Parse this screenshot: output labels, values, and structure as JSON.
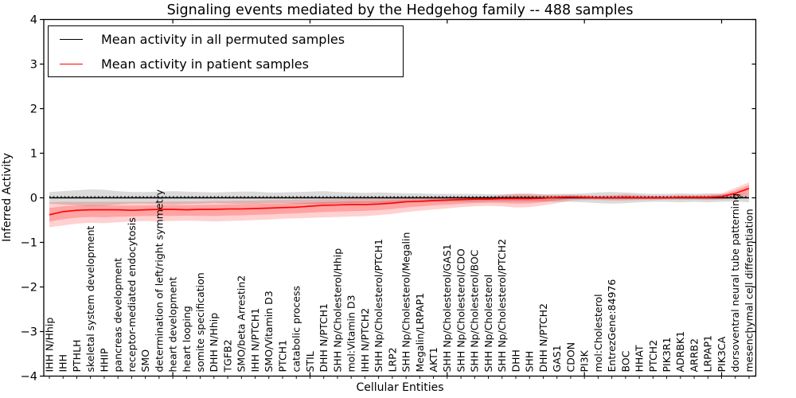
{
  "chart_data": {
    "type": "line",
    "title": "Signaling events mediated by the Hedgehog family -- 488 samples",
    "xlabel": "Cellular Entities",
    "ylabel": "Inferred Activity",
    "ylim": [
      -4,
      4
    ],
    "ytick_labels": [
      "4",
      "3",
      "2",
      "1",
      "0",
      "−1",
      "−2",
      "−3",
      "−4"
    ],
    "ytick_values": [
      4,
      3,
      2,
      1,
      0,
      -1,
      -2,
      -3,
      -4
    ],
    "grid": false,
    "legend_position": "upper left",
    "categories": [
      "IHH N/Hhip",
      "IHH",
      "PTHLH",
      "skeletal system development",
      "HHIP",
      "pancreas development",
      "receptor-mediated endocytosis",
      "SMO",
      "determination of left/right symmetry",
      "heart development",
      "heart looping",
      "somite specification",
      "DHH N/Hhip",
      "TGFB2",
      "SMO/beta Arrestin2",
      "IHH N/PTCH1",
      "SMO/Vitamin D3",
      "PTCH1",
      "catabolic process",
      "STIL",
      "DHH N/PTCH1",
      "SHH Np/Cholesterol/Hhip",
      "mol:Vitamin D3",
      "IHH N/PTCH2",
      "SHH Np/Cholesterol/PTCH1",
      "LRP2",
      "SHH Np/Cholesterol/Megalin",
      "Megalin/LRPAP1",
      "AKT1",
      "SHH Np/Cholesterol/GAS1",
      "SHH Np/Cholesterol/CDO",
      "SHH Np/Cholesterol/BOC",
      "SHH Np/Cholesterol",
      "SHH Np/Cholesterol/PTCH2",
      "DHH",
      "SHH",
      "DHH N/PTCH2",
      "GAS1",
      "CDON",
      "PI3K",
      "mol:Cholesterol",
      "EntrezGene:84976",
      "BOC",
      "HHAT",
      "PTCH2",
      "PIK3R1",
      "ADRBK1",
      "ARRB2",
      "LRPAP1",
      "PIK3CA",
      "dorsoventral neural tube patterning",
      "mesenchymal cell differentiation"
    ],
    "series": [
      {
        "name": "Mean activity in all permuted samples",
        "color": "#000000",
        "values": [
          0,
          0,
          0,
          0,
          0,
          0,
          0,
          0,
          0,
          0,
          0,
          0,
          0,
          0,
          0,
          0,
          0,
          0,
          0,
          0,
          0,
          0,
          0,
          0,
          0,
          0,
          0,
          0,
          0,
          0,
          0,
          0,
          0,
          0,
          0,
          0,
          0,
          0,
          0,
          0,
          0,
          0,
          0,
          0,
          0,
          0,
          0,
          0,
          0,
          0,
          0,
          0
        ],
        "band_upper": [
          0.13,
          0.15,
          0.17,
          0.19,
          0.18,
          0.15,
          0.13,
          0.13,
          0.14,
          0.15,
          0.14,
          0.13,
          0.12,
          0.13,
          0.14,
          0.14,
          0.12,
          0.12,
          0.13,
          0.14,
          0.15,
          0.13,
          0.12,
          0.11,
          0.12,
          0.11,
          0.1,
          0.1,
          0.09,
          0.09,
          0.09,
          0.09,
          0.08,
          0.08,
          0.08,
          0.08,
          0.08,
          0.09,
          0.09,
          0.1,
          0.12,
          0.13,
          0.12,
          0.1,
          0.09,
          0.09,
          0.1,
          0.09,
          0.1,
          0.09,
          0.08,
          0.1
        ],
        "band_lower": [
          -0.13,
          -0.15,
          -0.17,
          -0.19,
          -0.18,
          -0.15,
          -0.13,
          -0.13,
          -0.14,
          -0.15,
          -0.14,
          -0.13,
          -0.12,
          -0.13,
          -0.14,
          -0.14,
          -0.12,
          -0.12,
          -0.13,
          -0.14,
          -0.15,
          -0.13,
          -0.12,
          -0.11,
          -0.12,
          -0.11,
          -0.1,
          -0.1,
          -0.09,
          -0.09,
          -0.09,
          -0.09,
          -0.08,
          -0.08,
          -0.08,
          -0.08,
          -0.08,
          -0.09,
          -0.09,
          -0.1,
          -0.12,
          -0.13,
          -0.12,
          -0.1,
          -0.09,
          -0.09,
          -0.1,
          -0.09,
          -0.1,
          -0.09,
          -0.08,
          -0.1
        ]
      },
      {
        "name": "Mean activity in patient samples",
        "color": "#ff0000",
        "values": [
          -0.38,
          -0.31,
          -0.28,
          -0.27,
          -0.27,
          -0.27,
          -0.28,
          -0.27,
          -0.26,
          -0.26,
          -0.27,
          -0.26,
          -0.26,
          -0.25,
          -0.25,
          -0.24,
          -0.23,
          -0.22,
          -0.21,
          -0.19,
          -0.17,
          -0.16,
          -0.15,
          -0.15,
          -0.14,
          -0.12,
          -0.09,
          -0.08,
          -0.06,
          -0.05,
          -0.04,
          -0.03,
          -0.03,
          -0.02,
          -0.02,
          -0.02,
          -0.01,
          0.01,
          0.02,
          0.01,
          0.0,
          0.0,
          0.01,
          0.0,
          0.0,
          0.0,
          0.01,
          0.01,
          0.01,
          0.03,
          0.1,
          0.21
        ],
        "band_upper": [
          -0.1,
          -0.09,
          -0.09,
          -0.09,
          -0.09,
          -0.09,
          -0.09,
          -0.09,
          -0.09,
          -0.08,
          -0.08,
          -0.08,
          -0.07,
          -0.07,
          -0.06,
          -0.06,
          -0.05,
          -0.05,
          -0.04,
          -0.04,
          -0.03,
          -0.03,
          -0.02,
          -0.02,
          -0.02,
          -0.01,
          0.0,
          0.0,
          0.01,
          0.01,
          0.02,
          0.02,
          0.03,
          0.06,
          0.1,
          0.1,
          0.07,
          0.06,
          0.07,
          0.06,
          0.05,
          0.06,
          0.08,
          0.06,
          0.05,
          0.05,
          0.06,
          0.06,
          0.07,
          0.1,
          0.22,
          0.35
        ],
        "band_lower": [
          -0.66,
          -0.62,
          -0.58,
          -0.56,
          -0.57,
          -0.55,
          -0.53,
          -0.52,
          -0.53,
          -0.52,
          -0.51,
          -0.52,
          -0.53,
          -0.52,
          -0.51,
          -0.5,
          -0.49,
          -0.47,
          -0.46,
          -0.45,
          -0.44,
          -0.43,
          -0.42,
          -0.41,
          -0.39,
          -0.36,
          -0.32,
          -0.29,
          -0.26,
          -0.24,
          -0.21,
          -0.19,
          -0.18,
          -0.19,
          -0.22,
          -0.21,
          -0.17,
          -0.12,
          -0.06,
          -0.05,
          -0.05,
          -0.06,
          -0.06,
          -0.05,
          -0.05,
          -0.04,
          -0.04,
          -0.04,
          -0.05,
          -0.04,
          -0.02,
          0.02
        ]
      }
    ]
  },
  "legend": {
    "entries": [
      {
        "label": "Mean activity in all permuted samples",
        "color": "#000000"
      },
      {
        "label": "Mean activity in patient samples",
        "color": "#ff0000"
      }
    ]
  }
}
